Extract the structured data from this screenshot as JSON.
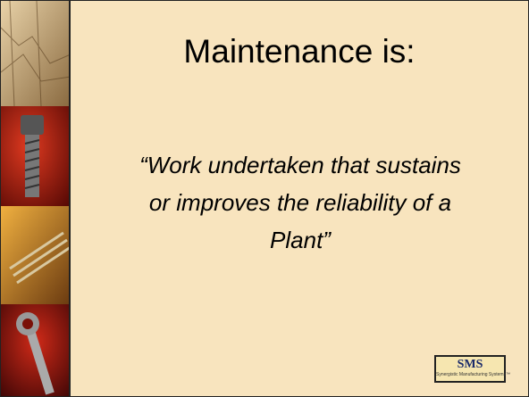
{
  "title": "Maintenance is:",
  "quote": [
    "“Work undertaken that sustains",
    "or improves the reliability of a",
    "Plant”"
  ],
  "logo": {
    "name": "SMS",
    "tagline": "Synergistic Manufacturing Systems™"
  }
}
